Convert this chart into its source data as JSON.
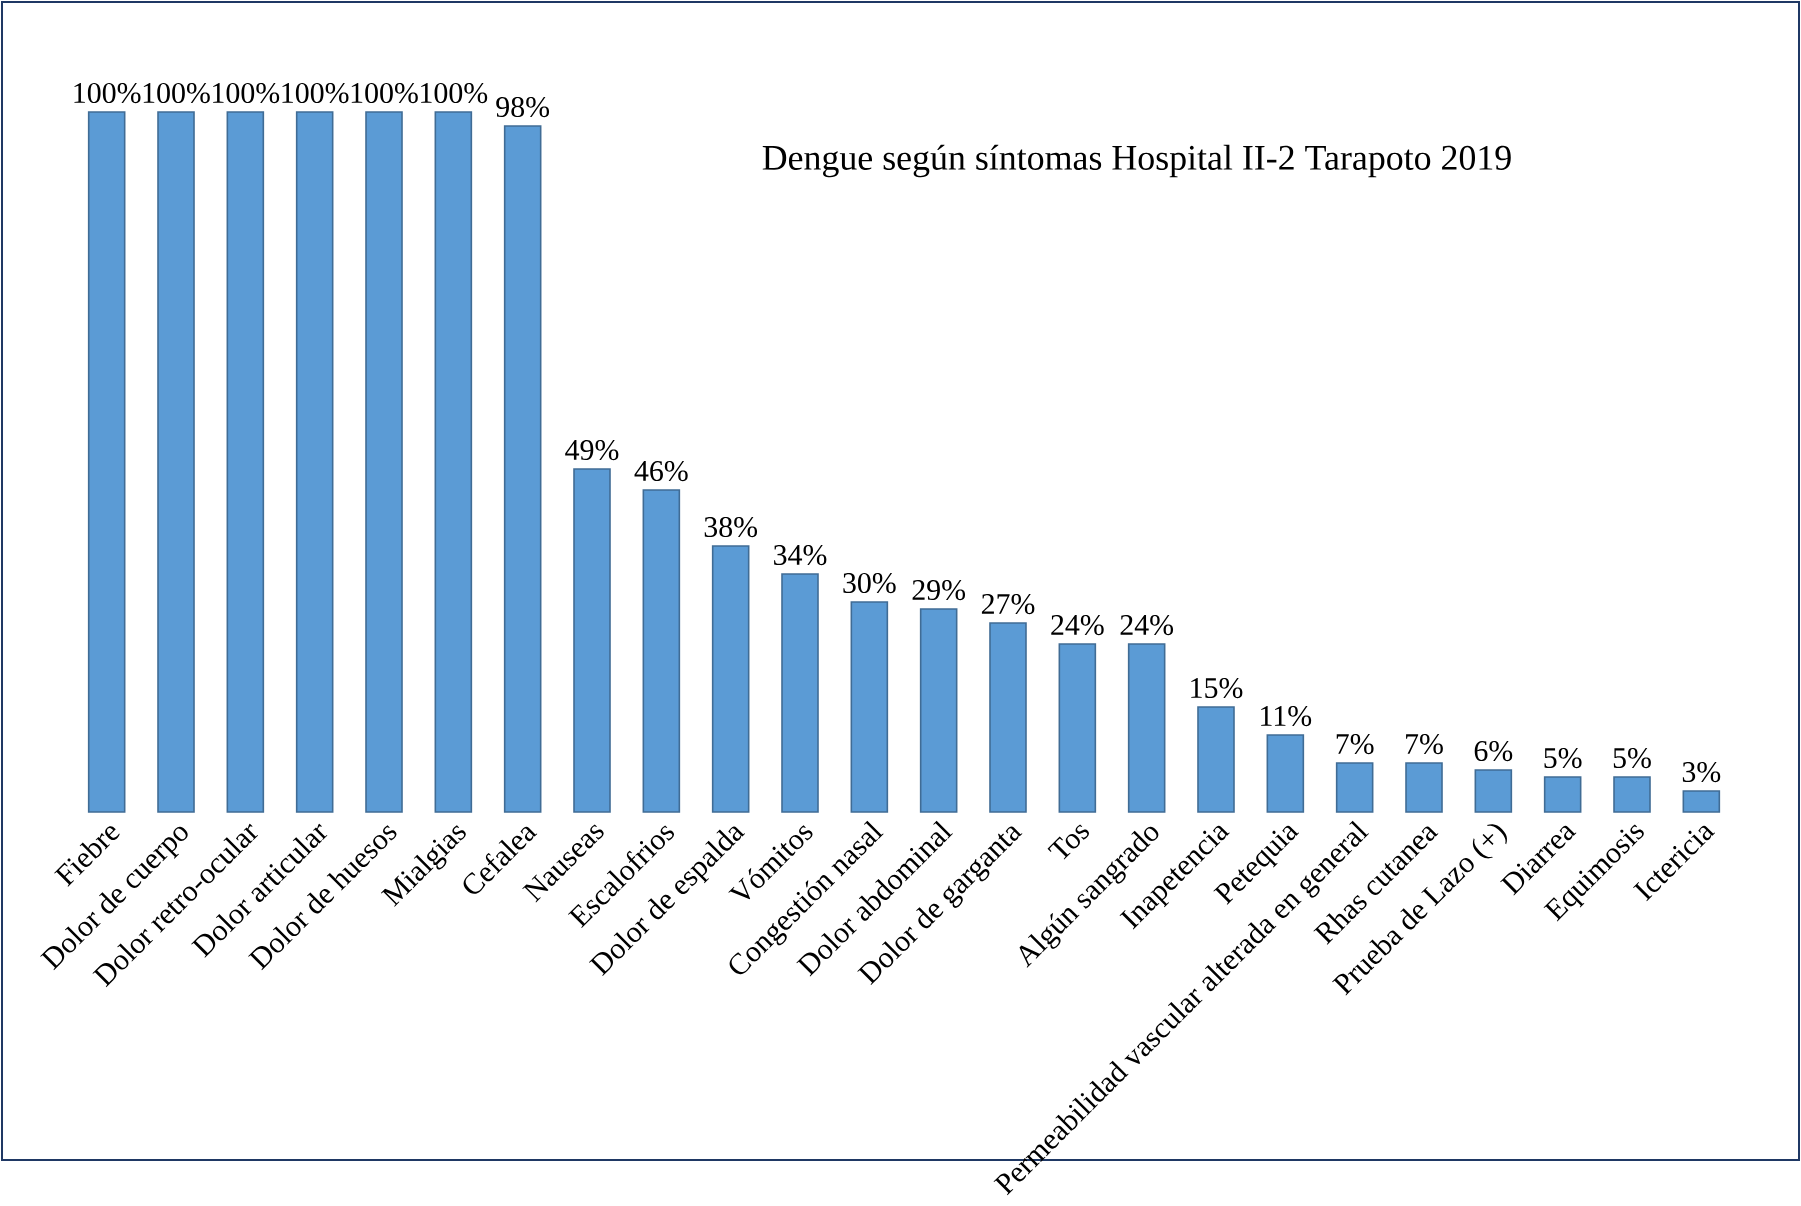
{
  "chart_data": {
    "type": "bar",
    "title": "Dengue según síntomas Hospital II-2 Tarapoto 2019",
    "categories": [
      "Fiebre",
      "Dolor de cuerpo",
      "Dolor retro-ocular",
      "Dolor articular",
      "Dolor de huesos",
      "Mialgias",
      "Cefalea",
      "Nauseas",
      "Escalofrios",
      "Dolor de espalda",
      "Vómitos",
      "Congestión nasal",
      "Dolor abdominal",
      "Dolor de garganta",
      "Tos",
      "Algún sangrado",
      "Inapetencia",
      "Petequia",
      "Permeabilidad vascular alterada en general",
      "Rhas cutanea",
      "Prueba de Lazo (+)",
      "Diarrea",
      "Equimosis",
      "Ictericia"
    ],
    "values": [
      100,
      100,
      100,
      100,
      100,
      100,
      98,
      49,
      46,
      38,
      34,
      30,
      29,
      27,
      24,
      24,
      15,
      11,
      7,
      7,
      6,
      5,
      5,
      3
    ],
    "value_labels": [
      "100%",
      "100%",
      "100%",
      "100%",
      "100%",
      "100%",
      "98%",
      "49%",
      "46%",
      "38%",
      "34%",
      "30%",
      "29%",
      "27%",
      "24%",
      "24%",
      "15%",
      "11%",
      "7%",
      "7%",
      "6%",
      "5%",
      "5%",
      "3%"
    ],
    "color": "#5b9bd5",
    "ylim": [
      0,
      100
    ]
  }
}
